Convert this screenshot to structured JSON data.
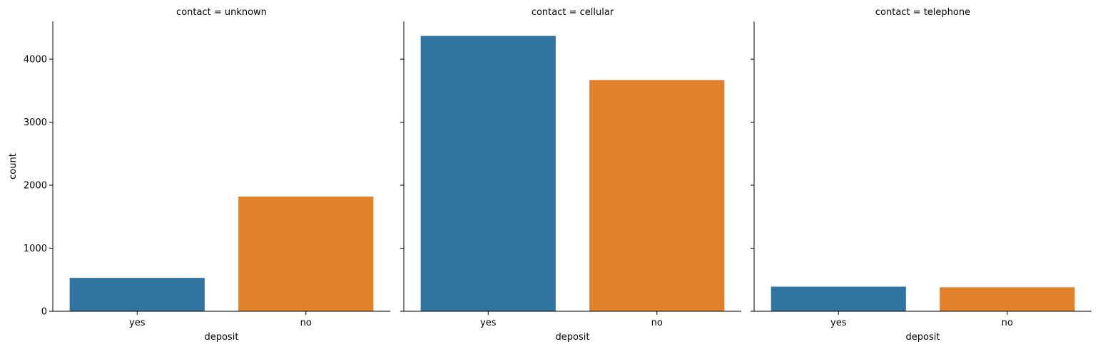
{
  "chart_data": {
    "type": "bar",
    "xlabel": "deposit",
    "ylabel": "count",
    "ylim": [
      0,
      4600
    ],
    "yticks": [
      0,
      1000,
      2000,
      3000,
      4000
    ],
    "categories": [
      "yes",
      "no"
    ],
    "colors": [
      "#3274a1",
      "#e1812c"
    ],
    "grid": false,
    "facets": [
      {
        "title": "contact = unknown",
        "values": [
          530,
          1820
        ]
      },
      {
        "title": "contact = cellular",
        "values": [
          4370,
          3670
        ]
      },
      {
        "title": "contact = telephone",
        "values": [
          390,
          380
        ]
      }
    ]
  }
}
